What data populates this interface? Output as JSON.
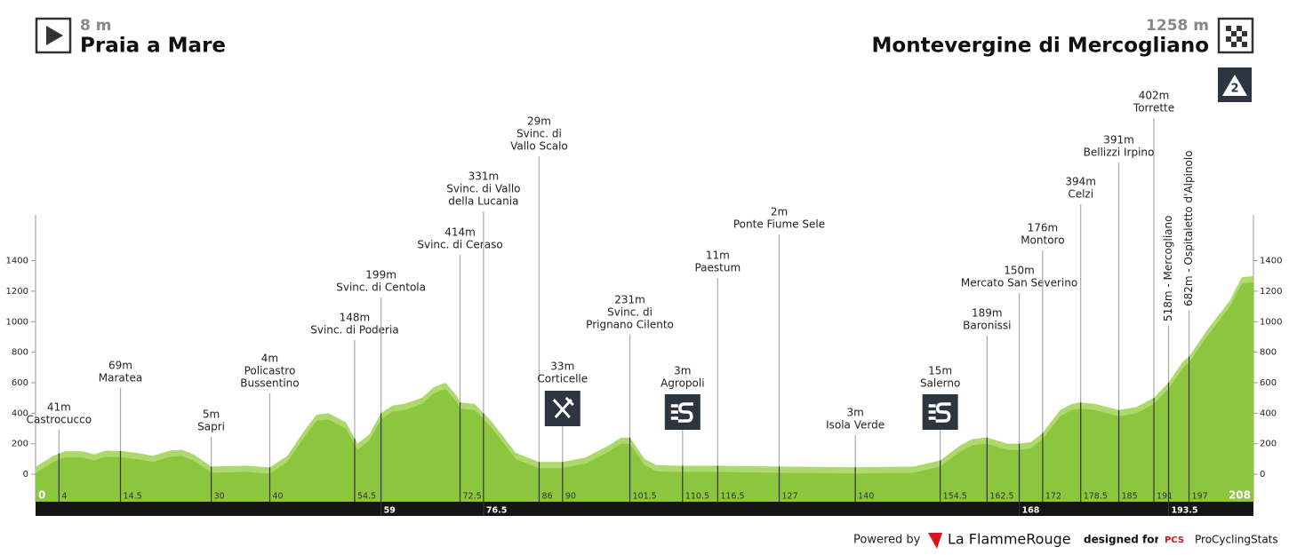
{
  "chart_data": {
    "type": "profile",
    "start": {
      "altitude": "8 m",
      "name": "Praia a Mare"
    },
    "finish": {
      "altitude": "1258 m",
      "name": "Montevergine di Mercogliano",
      "climb_category": 2
    },
    "xlim": [
      0,
      208
    ],
    "ylim": [
      -180,
      1700
    ],
    "yticks": [
      0,
      200,
      400,
      600,
      800,
      1000,
      1200,
      1400
    ],
    "color": "#8cc63f",
    "profile": {
      "km": [
        0,
        3,
        5,
        8,
        10,
        12,
        15,
        18,
        20,
        23,
        25,
        27,
        30,
        36,
        40,
        43,
        46,
        48,
        50,
        53,
        55,
        57,
        59,
        61,
        63,
        66,
        68,
        70,
        72,
        72.5,
        75,
        78,
        82,
        86,
        90,
        94,
        98,
        100,
        101.5,
        104,
        106,
        110,
        116,
        127,
        140,
        150,
        154.5,
        158,
        160,
        162.5,
        166,
        168,
        170,
        172,
        175,
        177,
        178.5,
        181,
        183,
        185,
        188,
        191,
        193.5,
        196,
        197,
        200,
        204,
        206,
        208
      ],
      "elevation": [
        8,
        80,
        110,
        110,
        90,
        115,
        110,
        95,
        80,
        115,
        120,
        90,
        10,
        15,
        4,
        80,
        250,
        350,
        360,
        300,
        160,
        220,
        360,
        410,
        420,
        460,
        530,
        560,
        470,
        430,
        420,
        300,
        100,
        40,
        40,
        70,
        150,
        200,
        200,
        60,
        20,
        15,
        15,
        10,
        5,
        10,
        50,
        150,
        190,
        200,
        160,
        160,
        170,
        230,
        380,
        420,
        430,
        420,
        400,
        380,
        400,
        460,
        560,
        700,
        730,
        900,
        1100,
        1250,
        1258
      ]
    },
    "waypoints": [
      {
        "km": 4,
        "elevation": 41,
        "label": [
          "41m",
          "Castrocucco"
        ]
      },
      {
        "km": 14.5,
        "elevation": 69,
        "label": [
          "69m",
          "Maratea"
        ]
      },
      {
        "km": 30,
        "elevation": 5,
        "label": [
          "5m",
          "Sapri"
        ]
      },
      {
        "km": 40,
        "elevation": 4,
        "label": [
          "4m",
          "Policastro",
          "Bussentino"
        ]
      },
      {
        "km": 54.5,
        "elevation": 148,
        "label": [
          "148m",
          "Svinc. di Poderia"
        ]
      },
      {
        "km": 59,
        "elevation": 199,
        "label": [
          "199m",
          "Svinc. di Centola"
        ],
        "bar": true
      },
      {
        "km": 72.5,
        "elevation": 414,
        "label": [
          "414m",
          "Svinc. di Ceraso"
        ]
      },
      {
        "km": 76.5,
        "elevation": 331,
        "label": [
          "331m",
          "Svinc. di Vallo",
          "della Lucania"
        ],
        "bar": true
      },
      {
        "km": 86,
        "elevation": 29,
        "label": [
          "29m",
          "Svinc. di",
          "Vallo Scalo"
        ]
      },
      {
        "km": 90,
        "elevation": 33,
        "label": [
          "33m",
          "Corticelle"
        ],
        "icon": "feed"
      },
      {
        "km": 101.5,
        "elevation": 231,
        "label": [
          "231m",
          "Svinc. di",
          "Prignano Cilento"
        ]
      },
      {
        "km": 110.5,
        "elevation": 3,
        "label": [
          "3m",
          "Agropoli"
        ],
        "icon": "sprint"
      },
      {
        "km": 116.5,
        "elevation": 11,
        "label": [
          "11m",
          "Paestum"
        ]
      },
      {
        "km": 127,
        "elevation": 2,
        "label": [
          "2m",
          "Ponte Fiume Sele"
        ]
      },
      {
        "km": 140,
        "elevation": 3,
        "label": [
          "3m",
          "Isola Verde"
        ]
      },
      {
        "km": 154.5,
        "elevation": 15,
        "label": [
          "15m",
          "Salerno"
        ],
        "icon": "sprint"
      },
      {
        "km": 162.5,
        "elevation": 189,
        "label": [
          "189m",
          "Baronissi"
        ]
      },
      {
        "km": 168,
        "elevation": 150,
        "label": [
          "150m",
          "Mercato San Severino"
        ],
        "bar": true
      },
      {
        "km": 172,
        "elevation": 176,
        "label": [
          "176m",
          "Montoro"
        ]
      },
      {
        "km": 178.5,
        "elevation": 394,
        "label": [
          "394m",
          "Celzi"
        ]
      },
      {
        "km": 185,
        "elevation": 391,
        "label": [
          "391m",
          "Bellizzi Irpino"
        ]
      },
      {
        "km": 191,
        "elevation": 402,
        "label": [
          "402m",
          "Torrette"
        ]
      },
      {
        "km": 193.5,
        "elevation": 518,
        "label": [
          "518m - Mercogliano"
        ],
        "vertical": true,
        "bar": true
      },
      {
        "km": 197,
        "elevation": 682,
        "label": [
          "682m - Ospitaletto d'Alpinolo"
        ],
        "vertical": true
      }
    ]
  },
  "footer": {
    "powered": "Powered by",
    "brand": "La FlammeRouge",
    "designed": "designed for",
    "pcs": "PCS",
    "site": "ProCyclingStats"
  }
}
